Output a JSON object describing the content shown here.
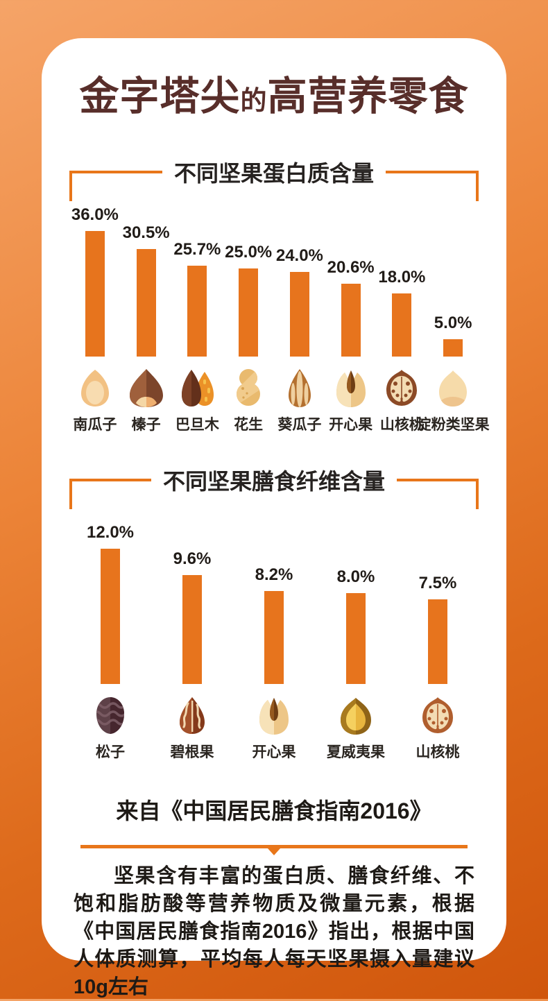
{
  "colors": {
    "accent_orange": "#E8761A",
    "bar_orange": "#E7741D",
    "title_brown": "#582E2A",
    "text_dark": "#1E1A16",
    "card_bg": "#FFFFFF",
    "bg_gradient_top": "#F5A468",
    "bg_gradient_bottom": "#D0560C"
  },
  "title": {
    "part1": "金字塔尖",
    "part2": "的",
    "part3": "高营养零食"
  },
  "chart_data": [
    {
      "type": "bar",
      "title": "不同坚果蛋白质含量",
      "categories": [
        "南瓜子",
        "榛子",
        "巴旦木",
        "花生",
        "葵瓜子",
        "开心果",
        "山核桃",
        "淀粉类坚果"
      ],
      "values": [
        36.0,
        30.5,
        25.7,
        25.0,
        24.0,
        20.6,
        18.0,
        5.0
      ],
      "value_labels": [
        "36.0%",
        "30.5%",
        "25.7%",
        "25.0%",
        "24.0%",
        "20.6%",
        "18.0%",
        "5.0%"
      ],
      "icons": [
        "pumpkin-seed",
        "hazelnut",
        "almond",
        "peanut",
        "sunflower-seed",
        "pistachio",
        "walnut",
        "chestnut"
      ],
      "unit": "%",
      "ylim": [
        0,
        36
      ],
      "bar_color": "#E7741D",
      "grid": false,
      "legend": false
    },
    {
      "type": "bar",
      "title": "不同坚果膳食纤维含量",
      "categories": [
        "松子",
        "碧根果",
        "开心果",
        "夏威夷果",
        "山核桃"
      ],
      "values": [
        12.0,
        9.6,
        8.2,
        8.0,
        7.5
      ],
      "value_labels": [
        "12.0%",
        "9.6%",
        "8.2%",
        "8.0%",
        "7.5%"
      ],
      "icons": [
        "pine-nut",
        "pecan",
        "pistachio",
        "macadamia",
        "walnut-red"
      ],
      "unit": "%",
      "ylim": [
        0,
        12
      ],
      "bar_color": "#E7741D",
      "grid": false,
      "legend": false
    }
  ],
  "source": "来自《中国居民膳食指南2016》",
  "description": "坚果含有丰富的蛋白质、膳食纤维、不饱和脂肪酸等营养物质及微量元素，根据《中国居民膳食指南2016》指出，根据中国人体质测算，平均每人每天坚果摄入量建议10g左右"
}
